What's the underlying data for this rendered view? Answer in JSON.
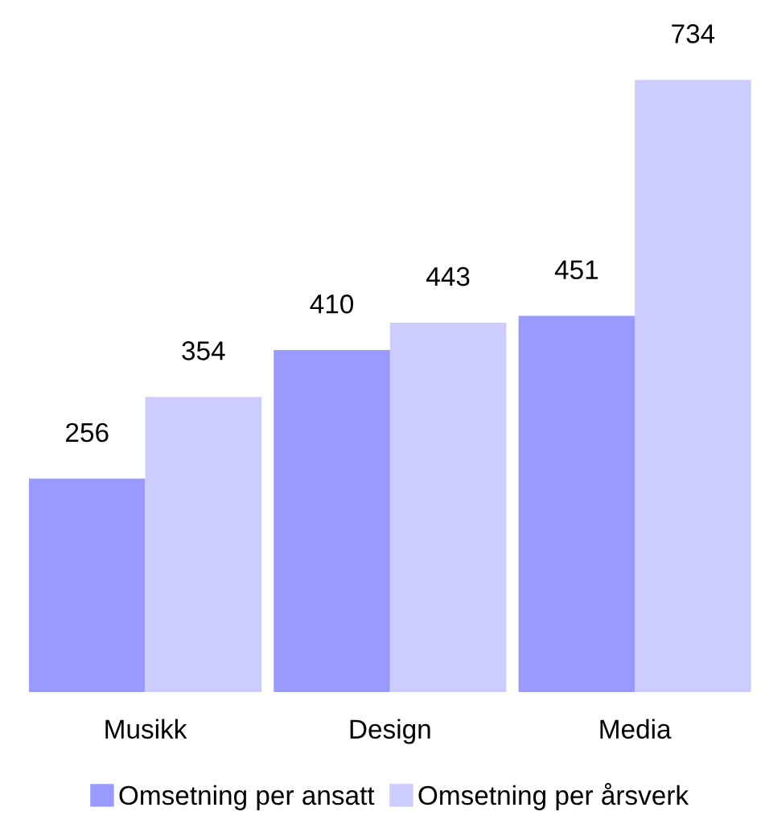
{
  "chart_data": {
    "type": "bar",
    "categories": [
      "Musikk",
      "Design",
      "Media"
    ],
    "series": [
      {
        "name": "Omsetning per ansatt",
        "color": "#9999ff",
        "values": [
          256,
          410,
          451
        ]
      },
      {
        "name": "Omsetning per årsverk",
        "color": "#ccccff",
        "values": [
          354,
          443,
          734
        ]
      }
    ],
    "tick_labels": "x",
    "data_labels": true,
    "legend": "bottom",
    "grid": false
  }
}
